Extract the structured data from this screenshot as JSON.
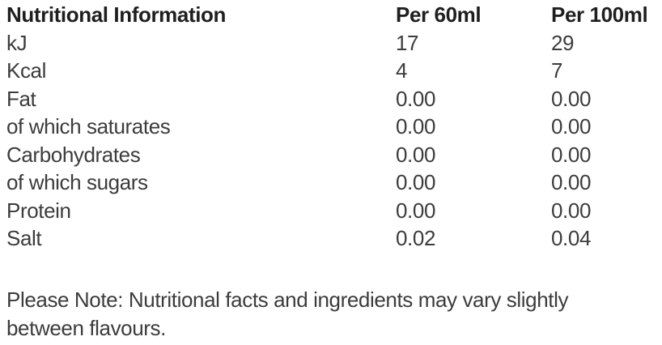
{
  "table": {
    "headers": {
      "label": "Nutritional Information",
      "per60": "Per 60ml",
      "per100": "Per 100ml"
    },
    "rows": [
      {
        "label": "kJ",
        "per60": "17",
        "per100": "29"
      },
      {
        "label": "Kcal",
        "per60": "4",
        "per100": "7"
      },
      {
        "label": "Fat",
        "per60": "0.00",
        "per100": "0.00"
      },
      {
        "label": "of which saturates",
        "per60": "0.00",
        "per100": "0.00"
      },
      {
        "label": "Carbohydrates",
        "per60": "0.00",
        "per100": "0.00"
      },
      {
        "label": "of which sugars",
        "per60": "0.00",
        "per100": "0.00"
      },
      {
        "label": "Protein",
        "per60": "0.00",
        "per100": "0.00"
      },
      {
        "label": "Salt",
        "per60": "0.02",
        "per100": "0.04"
      }
    ]
  },
  "note_lines": [
    "Please Note: Nutritional facts and ingredients may vary slightly",
    "between flavours."
  ],
  "colors": {
    "background": "#ffffff",
    "heading_text": "#1f1f1f",
    "body_text": "#3c3c3c"
  }
}
